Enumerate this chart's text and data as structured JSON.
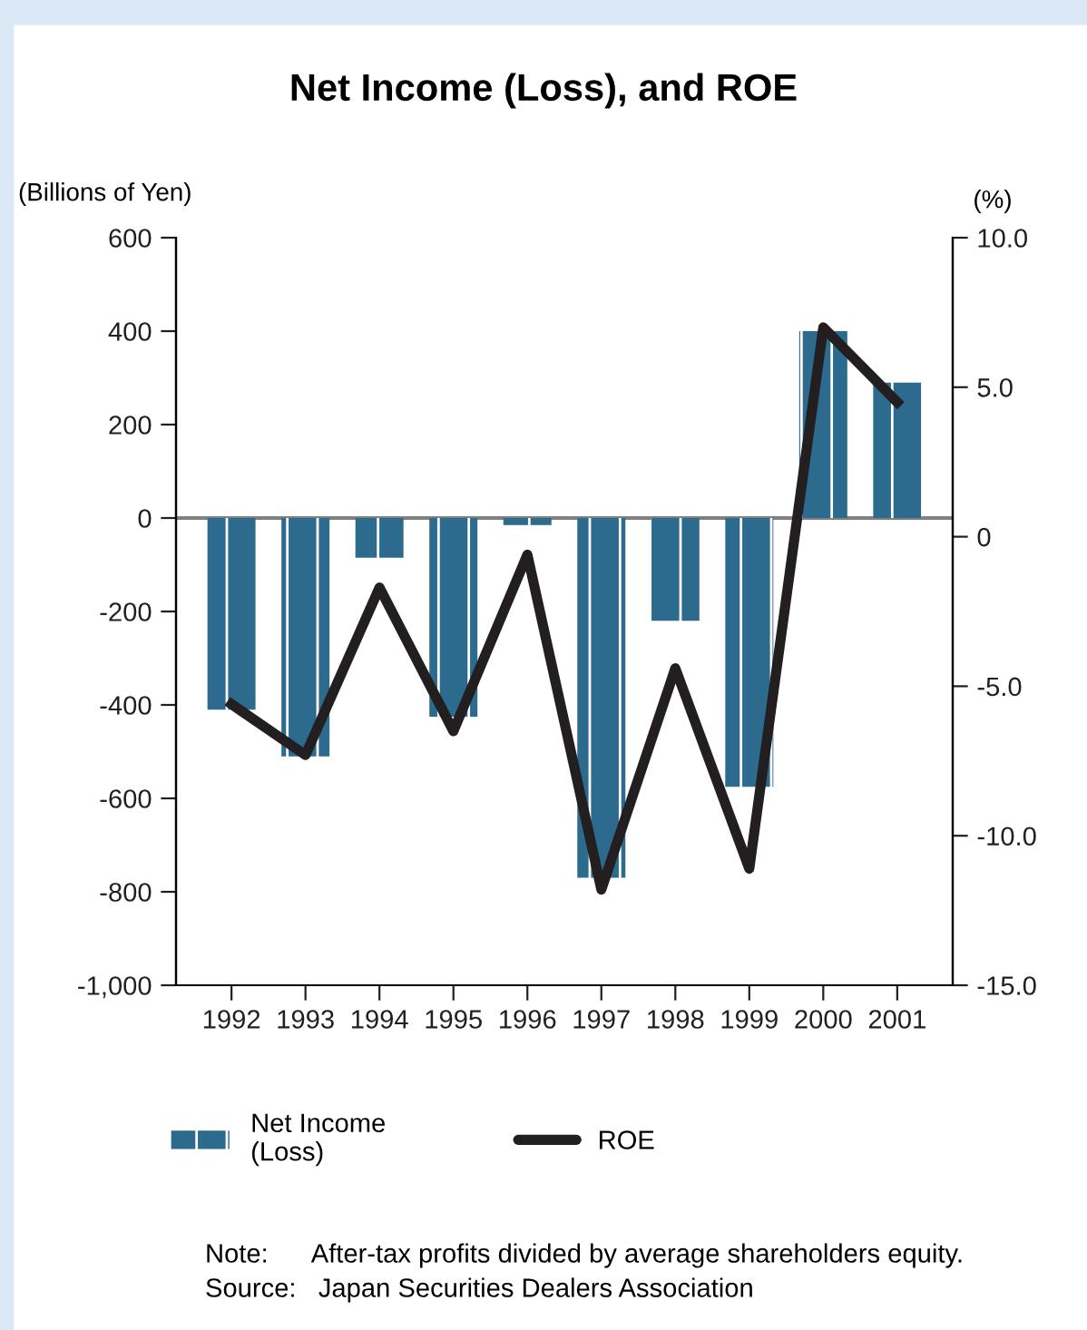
{
  "chart_data": {
    "type": "bar",
    "title": "Net Income (Loss), and ROE",
    "ylabel": "(Billions of Yen)",
    "y2label": "(%)",
    "categories": [
      "1992",
      "1993",
      "1994",
      "1995",
      "1996",
      "1997",
      "1998",
      "1999",
      "2000",
      "2001"
    ],
    "series": [
      {
        "name": "Net Income\n(Loss)",
        "color": "#2c6a8e",
        "values": [
          -410,
          -510,
          -85,
          -425,
          -15,
          -770,
          -220,
          -575,
          400,
          290
        ]
      },
      {
        "name": "ROE",
        "type": "line",
        "axis": "y2",
        "color": "#231f20",
        "values": [
          -5.6,
          -7.3,
          -1.7,
          -6.5,
          -0.6,
          -11.8,
          -4.4,
          -11.1,
          7.0,
          4.5
        ]
      }
    ],
    "ylim": [
      -1000,
      600
    ],
    "yticks": [
      {
        "value": -1000,
        "label": "-1,000"
      },
      -800,
      -600,
      -400,
      -200,
      0,
      200,
      400,
      600
    ],
    "y2lim": [
      -15,
      10
    ],
    "y2ticks": [
      {
        "value": -15,
        "label": "-15.0"
      },
      {
        "value": -10,
        "label": "-10.0"
      },
      {
        "value": -5,
        "label": "-5.0"
      },
      0,
      {
        "value": 5,
        "label": "5.0"
      },
      {
        "value": 10,
        "label": "10.0"
      }
    ],
    "ref_lines": [
      {
        "axis": "y",
        "value": 0,
        "color": "#808080"
      }
    ],
    "grid": false,
    "legend": "bottom",
    "line_style": "solid",
    "marker": "none",
    "annotations": [
      "Note:      After-tax profits divided by average shareholders equity.",
      "Source:   Japan Securities Dealers Association"
    ]
  }
}
